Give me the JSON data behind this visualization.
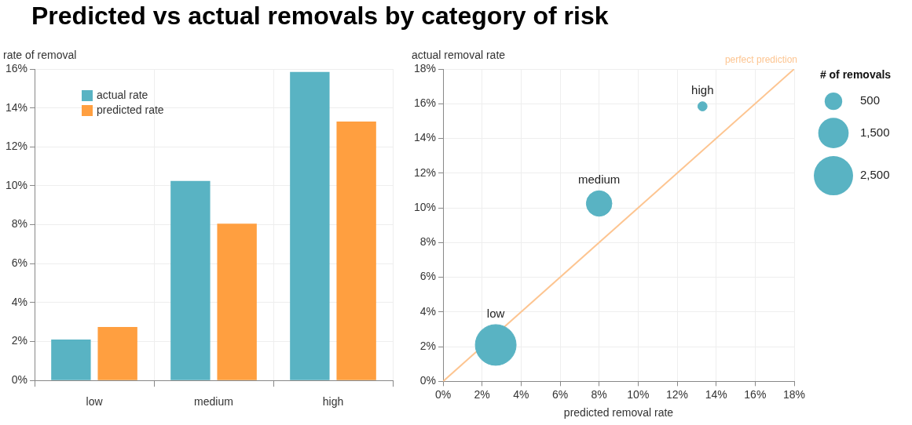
{
  "chart_data": [
    {
      "type": "bar",
      "title": "Predicted vs actual removals by category of risk",
      "ylabel": "rate of removal",
      "categories": [
        "low",
        "medium",
        "high"
      ],
      "series": [
        {
          "name": "actual rate",
          "color": "#59b3c3",
          "values": [
            2.1,
            10.25,
            15.85
          ]
        },
        {
          "name": "predicted rate",
          "color": "#ff9f40",
          "values": [
            2.75,
            8.05,
            13.3
          ]
        }
      ],
      "ylim": [
        0,
        16
      ],
      "yticks": [
        {
          "value": 0,
          "label": "0%"
        },
        {
          "value": 2,
          "label": "2%"
        },
        {
          "value": 4,
          "label": "4%"
        },
        {
          "value": 6,
          "label": "6%"
        },
        {
          "value": 8,
          "label": "8%"
        },
        {
          "value": 10,
          "label": "10%"
        },
        {
          "value": 12,
          "label": "12%"
        },
        {
          "value": 14,
          "label": "14%"
        },
        {
          "value": 16,
          "label": "16%"
        }
      ],
      "grid": true,
      "legend": "top left"
    },
    {
      "type": "bubble",
      "xlabel": "predicted removal rate",
      "ylabel": "actual removal rate",
      "legend_title": "# of removals",
      "series": [
        {
          "color": "#59b3c3",
          "x": [
            2.7,
            8.0,
            13.3
          ],
          "values": [
            2.1,
            10.25,
            15.85
          ],
          "sizes": [
            2700,
            1060,
            137
          ]
        },
        {
          "type": "line",
          "name": "perfect prediction",
          "color": "#fdc591",
          "x": [
            0,
            18
          ],
          "values": [
            0,
            18
          ]
        }
      ],
      "size_legend": [
        500,
        {
          "value": 1500,
          "label": "1,500"
        },
        {
          "value": 2500,
          "label": "2,500"
        }
      ],
      "annotations": [
        {
          "text": "low",
          "x": 2.7,
          "y": 2.1
        },
        {
          "text": "medium",
          "x": 8.0,
          "y": 10.25
        },
        {
          "text": "high",
          "x": 13.3,
          "y": 15.85
        }
      ],
      "xlim": [
        0,
        18
      ],
      "xticks": [
        {
          "value": 0,
          "label": "0%"
        },
        {
          "value": 2,
          "label": "2%"
        },
        {
          "value": 4,
          "label": "4%"
        },
        {
          "value": 6,
          "label": "6%"
        },
        {
          "value": 8,
          "label": "8%"
        },
        {
          "value": 10,
          "label": "10%"
        },
        {
          "value": 12,
          "label": "12%"
        },
        {
          "value": 14,
          "label": "14%"
        },
        {
          "value": 16,
          "label": "16%"
        },
        {
          "value": 18,
          "label": "18%"
        }
      ],
      "ylim": [
        0,
        18
      ],
      "yticks": [
        {
          "value": 0,
          "label": "0%"
        },
        {
          "value": 2,
          "label": "2%"
        },
        {
          "value": 4,
          "label": "4%"
        },
        {
          "value": 6,
          "label": "6%"
        },
        {
          "value": 8,
          "label": "8%"
        },
        {
          "value": 10,
          "label": "10%"
        },
        {
          "value": 12,
          "label": "12%"
        },
        {
          "value": 14,
          "label": "14%"
        },
        {
          "value": 16,
          "label": "16%"
        },
        {
          "value": 18,
          "label": "18%"
        }
      ],
      "grid": true
    }
  ]
}
